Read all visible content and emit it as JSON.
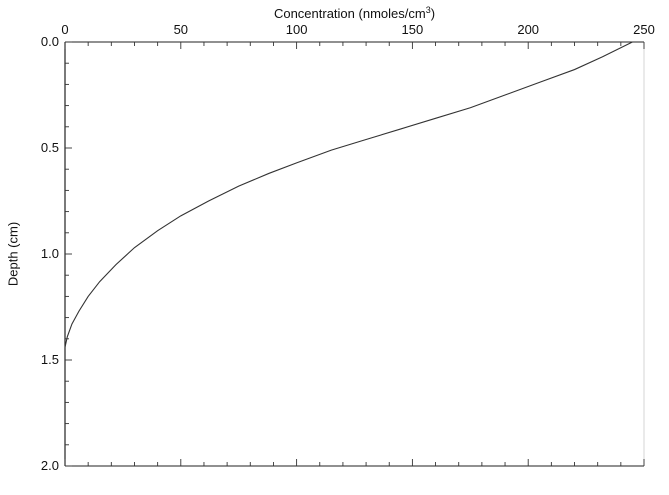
{
  "chart_data": {
    "type": "line",
    "title": "",
    "xlabel": "Concentration  (nmoles/cm",
    "xlabel_superscript": "3",
    "xlabel_suffix": ")",
    "ylabel": "Depth (cm)",
    "xlim": [
      0,
      250
    ],
    "ylim": [
      0.0,
      2.0
    ],
    "y_inverted": true,
    "x_axis_position": "top",
    "grid": false,
    "legend": "none",
    "xticks": [
      "0",
      "50",
      "100",
      "150",
      "200",
      "250"
    ],
    "yticks": [
      "0.0",
      "0.5",
      "1.0",
      "1.5",
      "2.0"
    ],
    "series": [
      {
        "color": "#333333",
        "x": [
          245,
          232,
          220,
          205,
          190,
          175,
          160,
          145,
          130,
          115,
          100,
          88,
          75,
          62,
          50,
          40,
          30,
          22,
          15,
          10,
          6,
          3,
          1,
          0
        ],
        "y": [
          0.0,
          0.07,
          0.13,
          0.19,
          0.25,
          0.31,
          0.36,
          0.41,
          0.46,
          0.51,
          0.57,
          0.62,
          0.68,
          0.75,
          0.82,
          0.89,
          0.97,
          1.05,
          1.13,
          1.2,
          1.27,
          1.33,
          1.39,
          1.44
        ]
      }
    ]
  }
}
